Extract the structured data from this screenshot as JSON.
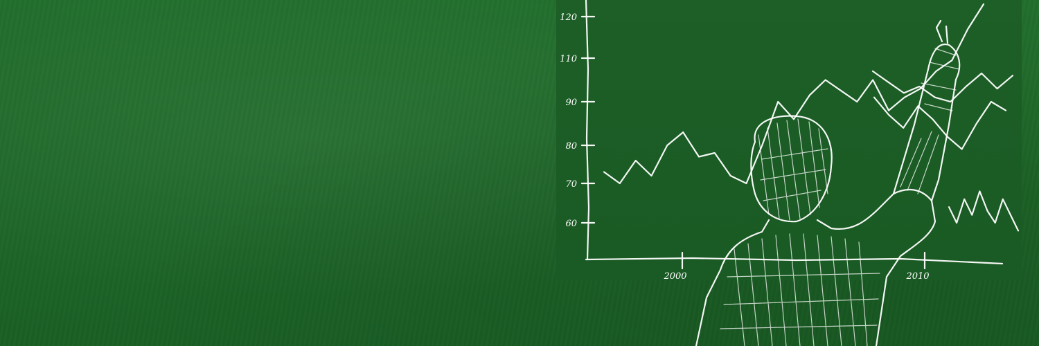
{
  "scene": {
    "background": "#1f6a2a",
    "chalk_color": "#ffffff",
    "figure": "person-drawing-chart-icon"
  },
  "chart_data": {
    "type": "line",
    "y_ticks": [
      "120",
      "110",
      "90",
      "80",
      "70",
      "60"
    ],
    "x_ticks": [
      "2000",
      "2010"
    ],
    "series": [
      {
        "values": [
          73,
          70,
          76,
          72,
          80,
          83,
          77,
          78,
          72,
          70,
          80,
          90,
          86,
          93,
          100,
          95,
          90,
          100,
          88,
          92,
          96,
          104,
          109,
          117,
          123
        ]
      },
      {
        "values": [
          104,
          99,
          94,
          97,
          92,
          90,
          97,
          103,
          96,
          102
        ]
      },
      {
        "values": [
          92,
          87,
          84,
          89,
          86,
          82,
          79,
          85,
          90,
          88
        ]
      },
      {
        "values": [
          64,
          60,
          66,
          62,
          68,
          63,
          60,
          66,
          62,
          58
        ]
      }
    ],
    "xlabel": "",
    "ylabel": ""
  }
}
